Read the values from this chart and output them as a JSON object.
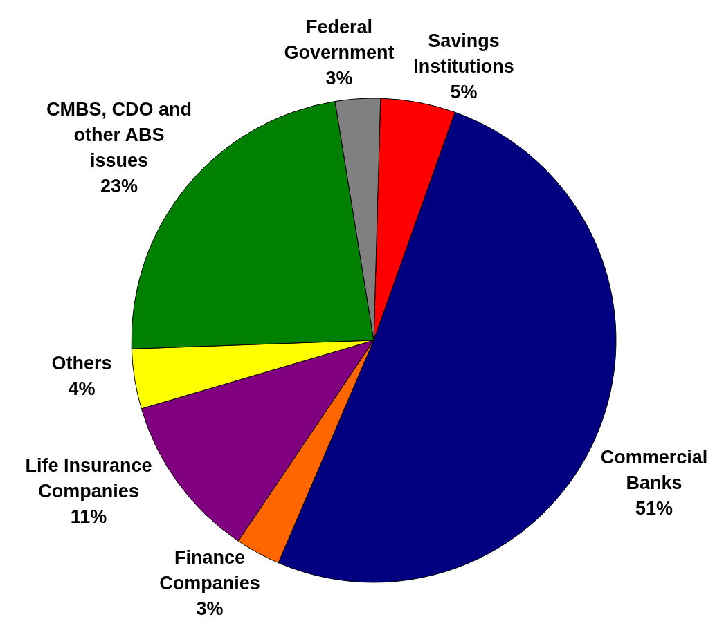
{
  "chart_data": {
    "type": "pie",
    "categories": [
      "Savings Institutions",
      "Commercial Banks",
      "Finance Companies",
      "Life Insurance Companies",
      "Others",
      "CMBS, CDO and other ABS issues",
      "Federal Government"
    ],
    "values": [
      5,
      51,
      3,
      11,
      4,
      23,
      3
    ],
    "value_labels": [
      "5%",
      "51%",
      "3%",
      "11%",
      "4%",
      "23%",
      "3%"
    ],
    "colors": [
      "#ff0000",
      "#000080",
      "#ff6600",
      "#800080",
      "#ffff00",
      "#008000",
      "#808080"
    ],
    "legend": false
  }
}
